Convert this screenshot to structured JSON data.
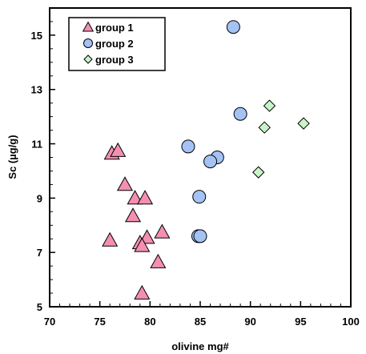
{
  "chart_data": {
    "type": "scatter",
    "xlabel": "olivine mg#",
    "ylabel": "Sc (µg/g)",
    "xlim": [
      70,
      100
    ],
    "ylim": [
      5,
      16
    ],
    "x_ticks": [
      "70",
      "75",
      "80",
      "85",
      "90",
      "95",
      "100"
    ],
    "y_ticks": [
      "5",
      "7",
      "9",
      "11",
      "13",
      "15"
    ],
    "grid": false,
    "legend_position": "top-left",
    "series": [
      {
        "name": "group 1",
        "marker": "triangle",
        "fill": "#f48fb1",
        "stroke": "#000000",
        "points": [
          {
            "x": 76.2,
            "y": 10.65
          },
          {
            "x": 76.8,
            "y": 10.75
          },
          {
            "x": 77.5,
            "y": 9.5
          },
          {
            "x": 78.5,
            "y": 9.0
          },
          {
            "x": 79.5,
            "y": 9.0
          },
          {
            "x": 78.3,
            "y": 8.35
          },
          {
            "x": 76.0,
            "y": 7.45
          },
          {
            "x": 79.0,
            "y": 7.35
          },
          {
            "x": 79.7,
            "y": 7.55
          },
          {
            "x": 79.2,
            "y": 7.25
          },
          {
            "x": 81.2,
            "y": 7.75
          },
          {
            "x": 80.8,
            "y": 6.65
          },
          {
            "x": 79.2,
            "y": 5.5
          }
        ]
      },
      {
        "name": "group 2",
        "marker": "circle",
        "fill": "#a4c2f4",
        "stroke": "#000000",
        "points": [
          {
            "x": 88.3,
            "y": 15.3
          },
          {
            "x": 89.0,
            "y": 12.1
          },
          {
            "x": 83.8,
            "y": 10.9
          },
          {
            "x": 86.7,
            "y": 10.5
          },
          {
            "x": 86.0,
            "y": 10.35
          },
          {
            "x": 84.9,
            "y": 9.05
          },
          {
            "x": 84.8,
            "y": 7.6
          },
          {
            "x": 85.0,
            "y": 7.6
          }
        ]
      },
      {
        "name": "group 3",
        "marker": "diamond",
        "fill": "#c8f5c8",
        "stroke": "#000000",
        "points": [
          {
            "x": 91.9,
            "y": 12.4
          },
          {
            "x": 91.4,
            "y": 11.6
          },
          {
            "x": 95.3,
            "y": 11.75
          },
          {
            "x": 90.8,
            "y": 9.95
          }
        ]
      }
    ]
  }
}
